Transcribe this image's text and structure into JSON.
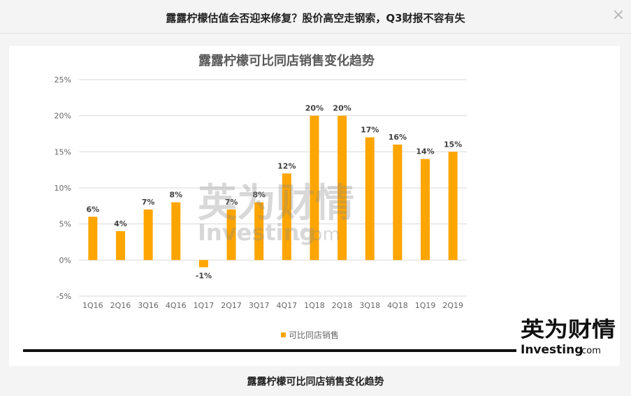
{
  "modal": {
    "title": "露露柠檬估值会否迎来修复？股价高空走钢索，Q3财报不容有失",
    "close_symbol": "×"
  },
  "caption": "露露柠檬可比同店销售变化趋势",
  "watermark": {
    "chinese": "英为财情",
    "latin": "Investing",
    "suffix": ".com"
  },
  "logo": {
    "chinese": "英为财情",
    "latin": "Investing",
    "suffix": ".com"
  },
  "colors": {
    "bar": "#FFA500",
    "grid": "#d9d9d9",
    "axis_text": "#666666",
    "title_text": "#595959",
    "label_text": "#404040"
  },
  "chart_data": {
    "type": "bar",
    "title": "露露柠檬可比同店销售变化趋势",
    "categories": [
      "1Q16",
      "2Q16",
      "3Q16",
      "4Q16",
      "1Q17",
      "2Q17",
      "3Q17",
      "4Q17",
      "1Q18",
      "2Q18",
      "3Q18",
      "4Q18",
      "1Q19",
      "2Q19"
    ],
    "series": [
      {
        "name": "可比同店销售",
        "values": [
          6,
          4,
          7,
          8,
          -1,
          7,
          8,
          12,
          20,
          20,
          17,
          16,
          14,
          15
        ],
        "data_labels": [
          "6%",
          "4%",
          "7%",
          "8%",
          "-1%",
          "7%",
          "8%",
          "12%",
          "20%",
          "20%",
          "17%",
          "16%",
          "14%",
          "15%"
        ]
      }
    ],
    "ylim": [
      -5,
      25
    ],
    "yticks": [
      -5,
      0,
      5,
      10,
      15,
      20,
      25
    ],
    "ytick_labels": [
      "-5%",
      "0%",
      "5%",
      "10%",
      "15%",
      "20%",
      "25%"
    ],
    "xlabel": "",
    "ylabel": "",
    "grid": true,
    "legend": "bottom"
  }
}
